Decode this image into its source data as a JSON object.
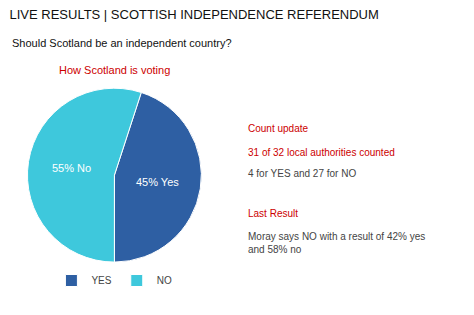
{
  "chart_data": {
    "type": "pie",
    "title": "LIVE RESULTS | SCOTTISH INDEPENDENCE REFERENDUM",
    "subtitle": "Should Scotland be an independent country?",
    "categories": [
      "YES",
      "NO"
    ],
    "values": [
      45,
      55
    ],
    "value_labels": [
      "45% Yes",
      "55% No"
    ],
    "colors": [
      "#2E5FA3",
      "#3EC8DC"
    ],
    "data_labels": true,
    "legend": "bottom",
    "annotations": [
      {
        "text": "How Scotland is voting",
        "color": "#CC0000"
      },
      {
        "text": "Count update",
        "color": "#CC0000"
      },
      {
        "text": "31 of 32 local authorities counted",
        "color": "#CC0000"
      },
      {
        "text": "4 for YES and 27 for NO"
      },
      {
        "text": "Last Result",
        "color": "#CC0000"
      },
      {
        "text": "Moray says NO with a result of 42% yes\nand 58% no"
      }
    ]
  }
}
